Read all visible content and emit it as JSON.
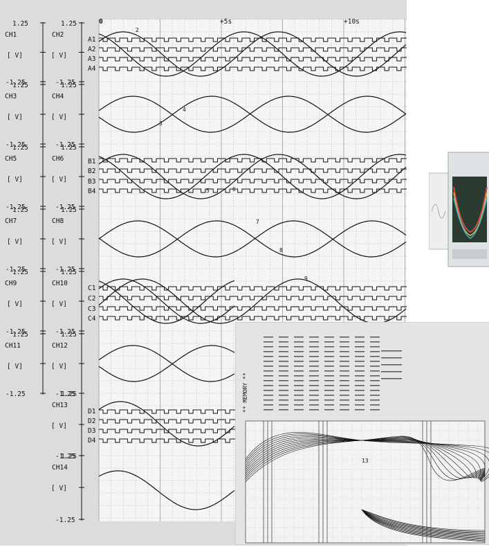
{
  "recorder": {
    "time_axis": {
      "start": "0",
      "mid": "+5s",
      "end": "+10s"
    },
    "left_scale": [
      {
        "top": "1.25",
        "name": "CH1",
        "unit": "[ V]",
        "bottom": "-1.25"
      },
      {
        "top": "1.25",
        "name": "CH3",
        "unit": "[ V]",
        "bottom": "-1.25"
      },
      {
        "top": "1.25",
        "name": "CH5",
        "unit": "[ V]",
        "bottom": "-1.25"
      },
      {
        "top": "1.25",
        "name": "CH7",
        "unit": "[ V]",
        "bottom": "-1.25"
      },
      {
        "top": "1.25",
        "name": "CH9",
        "unit": "[ V]",
        "bottom": "-1.25"
      },
      {
        "top": "1.25",
        "name": "CH11",
        "unit": "[ V]",
        "bottom": "-1.25"
      }
    ],
    "right_scale": [
      {
        "top": "1.25",
        "name": "CH2",
        "unit": "[ V]",
        "bottom": "-1.25"
      },
      {
        "top": "1.25",
        "name": "CH4",
        "unit": "[ V]",
        "bottom": "-1.25"
      },
      {
        "top": "1.25",
        "name": "CH6",
        "unit": "[ V]",
        "bottom": "-1.25"
      },
      {
        "top": "1.25",
        "name": "CH8",
        "unit": "[ V]",
        "bottom": "-1.25"
      },
      {
        "top": "1.25",
        "name": "CH10",
        "unit": "[ V]",
        "bottom": "-1.25"
      },
      {
        "top": "1.25",
        "name": "CH12",
        "unit": "[ V]",
        "bottom": "-1.25"
      },
      {
        "top": "1.25",
        "name": "CH13",
        "unit": "[ V]",
        "bottom": "-1.25"
      },
      {
        "top": "1.25",
        "name": "CH14",
        "unit": "[ V]",
        "bottom": "-1.25"
      }
    ],
    "logic_groups": [
      [
        "A1",
        "A2",
        "A3",
        "A4"
      ],
      [
        "B1",
        "B2",
        "B3",
        "B4"
      ],
      [
        "C1",
        "C2",
        "C3",
        "C4"
      ],
      [
        "D1",
        "D2",
        "D3",
        "D4"
      ]
    ],
    "trace_labels": [
      "2",
      "4",
      "3",
      "5",
      "6",
      "7",
      "8",
      "9"
    ],
    "colors": {
      "paper": "#f4f4f4",
      "grid": "#9a9a9a",
      "trace": "#111111",
      "outer": "#dcdcdc"
    }
  },
  "inset": {
    "header": "** MEMORY **",
    "marker": "13"
  }
}
